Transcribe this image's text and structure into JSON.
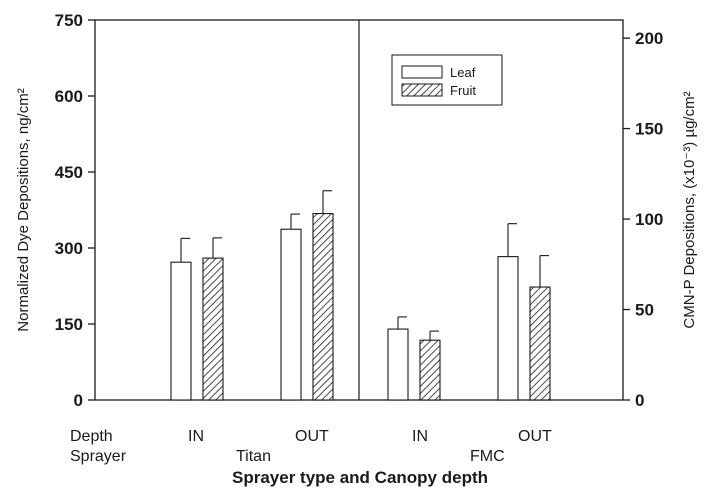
{
  "chart_data": {
    "type": "bar",
    "title": "",
    "xlabel": "Sprayer type and Canopy depth",
    "ylabel": "Normalized Dye Depositions, ng/cm²",
    "y2label": "CMN-P Depositions, (x10⁻³) µg/cm²",
    "ylim": [
      0,
      750
    ],
    "yticks": [
      "0",
      "150",
      "300",
      "450",
      "600",
      "750"
    ],
    "y2lim": [
      0,
      210
    ],
    "y2ticks": [
      "0",
      "50",
      "100",
      "150",
      "200"
    ],
    "grid": false,
    "legend_position": "top-center-right",
    "row_labels": {
      "depth": "Depth",
      "sprayer": "Sprayer"
    },
    "categories": [
      "IN",
      "OUT",
      "IN",
      "OUT"
    ],
    "sprayers": [
      "Titan",
      "FMC"
    ],
    "series": [
      {
        "name": "Leaf",
        "values": [
          272,
          337,
          140,
          283
        ],
        "errors": [
          47,
          30,
          24,
          65
        ]
      },
      {
        "name": "Fruit",
        "values": [
          280,
          368,
          118,
          223
        ],
        "errors": [
          40,
          45,
          18,
          62
        ]
      }
    ],
    "colors": {
      "axis": "#1a1a1a",
      "leaf_fill": "#ffffff",
      "fruit_hatch": "#1a1a1a"
    }
  }
}
